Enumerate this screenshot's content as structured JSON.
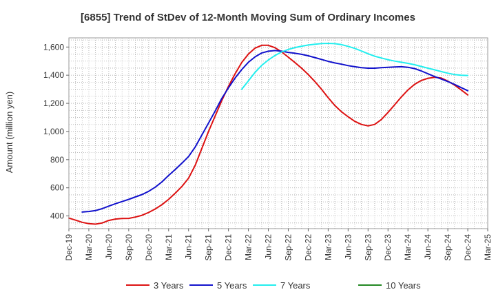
{
  "chart_data": {
    "type": "line",
    "title": "[6855]  Trend of StDev of 12-Month Moving Sum of Ordinary Incomes",
    "xlabel": "",
    "ylabel": "Amount (million yen)",
    "ylim": [
      310,
      1665
    ],
    "yticks": [
      400,
      600,
      800,
      1000,
      1200,
      1400,
      1600
    ],
    "ytick_labels": [
      "400",
      "600",
      "800",
      "1,000",
      "1,200",
      "1,400",
      "1,600"
    ],
    "xticks": [
      "Dec-19",
      "Mar-20",
      "Jun-20",
      "Sep-20",
      "Dec-20",
      "Mar-21",
      "Jun-21",
      "Sep-21",
      "Dec-21",
      "Mar-22",
      "Jun-22",
      "Sep-22",
      "Dec-22",
      "Mar-23",
      "Jun-23",
      "Sep-23",
      "Dec-23",
      "Mar-24",
      "Jun-24",
      "Sep-24",
      "Dec-24",
      "Mar-25"
    ],
    "grid": true,
    "legend_position": "bottom",
    "series": [
      {
        "name": "3 Years",
        "color": "#dd1111",
        "x": [
          0,
          1,
          2,
          3,
          4,
          5,
          6,
          7,
          8,
          9,
          10,
          11,
          12,
          13,
          14,
          15,
          16,
          17,
          18,
          19,
          20,
          21,
          22,
          23,
          24,
          25,
          26,
          27,
          28,
          29,
          30,
          31,
          32,
          33,
          34,
          35,
          36,
          37,
          38,
          39,
          40,
          41,
          42,
          43,
          44,
          45,
          46,
          47,
          48,
          49,
          50,
          51,
          52,
          53,
          54,
          55,
          56,
          57,
          58,
          59,
          60
        ],
        "values": [
          385,
          370,
          355,
          345,
          342,
          350,
          368,
          378,
          382,
          383,
          392,
          405,
          425,
          450,
          480,
          518,
          562,
          610,
          668,
          760,
          880,
          1000,
          1110,
          1220,
          1320,
          1410,
          1490,
          1550,
          1592,
          1612,
          1612,
          1595,
          1565,
          1528,
          1490,
          1450,
          1405,
          1355,
          1300,
          1240,
          1185,
          1140,
          1105,
          1072,
          1050,
          1040,
          1050,
          1085,
          1135,
          1190,
          1245,
          1295,
          1335,
          1362,
          1378,
          1385,
          1380,
          1358,
          1330,
          1295,
          1260
        ]
      },
      {
        "name": "5 Years",
        "color": "#1111cc",
        "x": [
          2,
          3,
          4,
          5,
          6,
          7,
          8,
          9,
          10,
          11,
          12,
          13,
          14,
          15,
          16,
          17,
          18,
          19,
          20,
          21,
          22,
          23,
          24,
          25,
          26,
          27,
          28,
          29,
          30,
          31,
          32,
          33,
          34,
          35,
          36,
          37,
          38,
          39,
          40,
          41,
          42,
          43,
          44,
          45,
          46,
          47,
          48,
          49,
          50,
          51,
          52,
          53,
          54,
          55,
          56,
          57,
          58,
          59,
          60
        ],
        "values": [
          428,
          432,
          438,
          452,
          470,
          487,
          502,
          518,
          535,
          552,
          575,
          605,
          642,
          688,
          730,
          775,
          822,
          890,
          975,
          1060,
          1145,
          1235,
          1310,
          1380,
          1440,
          1492,
          1530,
          1558,
          1570,
          1575,
          1570,
          1562,
          1556,
          1548,
          1538,
          1525,
          1512,
          1498,
          1487,
          1478,
          1468,
          1460,
          1453,
          1450,
          1450,
          1453,
          1456,
          1458,
          1460,
          1456,
          1447,
          1430,
          1410,
          1390,
          1373,
          1355,
          1335,
          1312,
          1290
        ]
      },
      {
        "name": "7 Years",
        "color": "#22eeee",
        "x": [
          26,
          27,
          28,
          29,
          30,
          31,
          32,
          33,
          34,
          35,
          36,
          37,
          38,
          39,
          40,
          41,
          42,
          43,
          44,
          45,
          46,
          47,
          48,
          49,
          50,
          51,
          52,
          53,
          54,
          55,
          56,
          57,
          58,
          59,
          60
        ],
        "values": [
          1300,
          1360,
          1420,
          1470,
          1508,
          1540,
          1565,
          1583,
          1596,
          1606,
          1614,
          1620,
          1625,
          1626,
          1624,
          1617,
          1605,
          1590,
          1572,
          1552,
          1535,
          1522,
          1510,
          1500,
          1492,
          1484,
          1474,
          1462,
          1450,
          1438,
          1426,
          1414,
          1405,
          1400,
          1398
        ]
      },
      {
        "name": "10 Years",
        "color": "#228822",
        "x": [],
        "values": []
      }
    ]
  }
}
